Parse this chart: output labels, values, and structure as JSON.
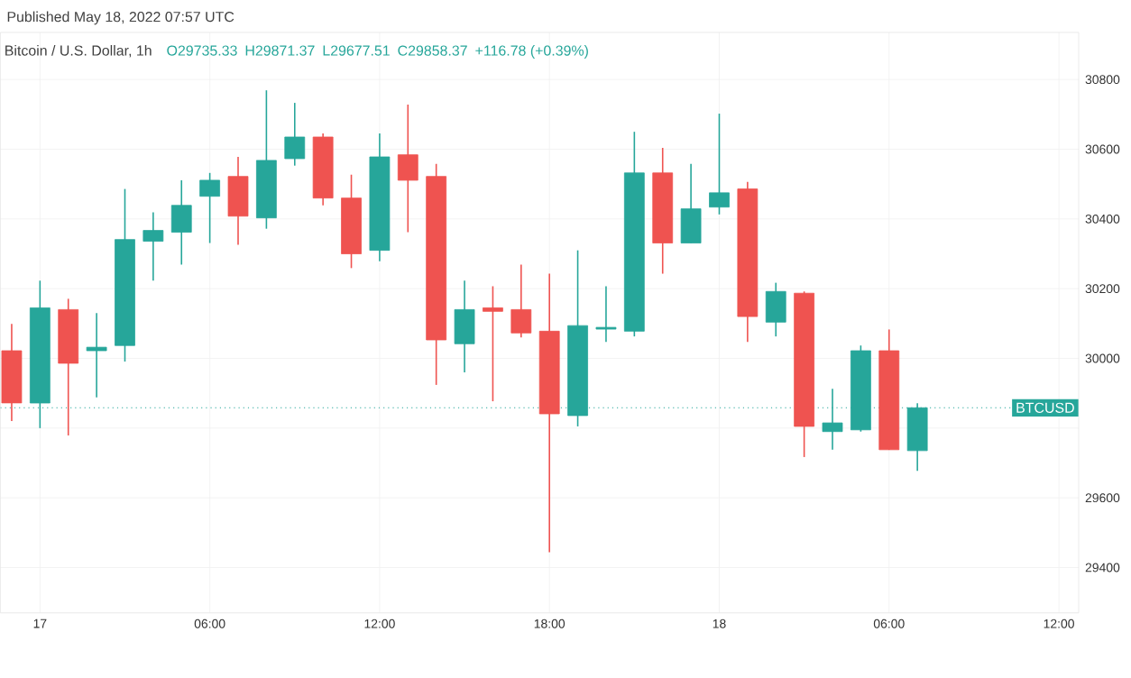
{
  "chart_data": {
    "type": "candlestick",
    "title": "Bitcoin / U.S. Dollar, 1h",
    "subtitle": "Published May 18, 2022 07:57 UTC",
    "annotations": [
      "O29735.33",
      "H29871.37",
      "L29677.51",
      "C29858.37",
      "+116.78 (+0.39%)"
    ],
    "x": [
      "2022-05-16T23:00",
      "2022-05-17T00:00",
      "2022-05-17T01:00",
      "2022-05-17T02:00",
      "2022-05-17T03:00",
      "2022-05-17T04:00",
      "2022-05-17T05:00",
      "2022-05-17T06:00",
      "2022-05-17T07:00",
      "2022-05-17T08:00",
      "2022-05-17T09:00",
      "2022-05-17T10:00",
      "2022-05-17T11:00",
      "2022-05-17T12:00",
      "2022-05-17T13:00",
      "2022-05-17T14:00",
      "2022-05-17T15:00",
      "2022-05-17T16:00",
      "2022-05-17T17:00",
      "2022-05-17T18:00",
      "2022-05-17T19:00",
      "2022-05-17T20:00",
      "2022-05-17T21:00",
      "2022-05-17T22:00",
      "2022-05-17T23:00",
      "2022-05-18T00:00",
      "2022-05-18T01:00",
      "2022-05-18T02:00",
      "2022-05-18T03:00",
      "2022-05-18T04:00",
      "2022-05-18T05:00",
      "2022-05-18T06:00",
      "2022-05-18T07:00"
    ],
    "ohlc": [
      [
        30022,
        30099,
        29820,
        29872
      ],
      [
        29872,
        30223,
        29800,
        30145
      ],
      [
        30140,
        30171,
        29779,
        29986
      ],
      [
        30022,
        30130,
        29888,
        30032
      ],
      [
        30037,
        30486,
        29991,
        30341
      ],
      [
        30336,
        30419,
        30223,
        30367
      ],
      [
        30362,
        30511,
        30269,
        30439
      ],
      [
        30465,
        30532,
        30331,
        30511
      ],
      [
        30522,
        30578,
        30326,
        30408
      ],
      [
        30403,
        30769,
        30372,
        30568
      ],
      [
        30573,
        30733,
        30553,
        30635
      ],
      [
        30635,
        30645,
        30439,
        30460
      ],
      [
        30460,
        30527,
        30259,
        30300
      ],
      [
        30310,
        30645,
        30279,
        30578
      ],
      [
        30584,
        30728,
        30362,
        30511
      ],
      [
        30522,
        30558,
        29924,
        30053
      ],
      [
        30042,
        30223,
        29960,
        30140
      ],
      [
        30145,
        30207,
        29877,
        30135
      ],
      [
        30140,
        30269,
        30060,
        30073
      ],
      [
        30078,
        30243,
        29444,
        29841
      ],
      [
        29836,
        30310,
        29805,
        30094
      ],
      [
        30084,
        30207,
        30047,
        30089
      ],
      [
        30078,
        30650,
        30063,
        30532
      ],
      [
        30532,
        30604,
        30243,
        30331
      ],
      [
        30331,
        30558,
        30331,
        30429
      ],
      [
        30434,
        30702,
        30413,
        30475
      ],
      [
        30486,
        30506,
        30047,
        30120
      ],
      [
        30104,
        30217,
        30063,
        30192
      ],
      [
        30187,
        30192,
        29717,
        29805
      ],
      [
        29790,
        29913,
        29738,
        29815
      ],
      [
        29795,
        30037,
        29790,
        30022
      ],
      [
        30022,
        30083,
        29738,
        29738
      ],
      [
        29735.33,
        29871.37,
        29677.51,
        29858.37
      ]
    ],
    "colors": [
      "#ef5350",
      "#26a69a",
      "#ef5350",
      "#26a69a",
      "#26a69a",
      "#26a69a",
      "#26a69a",
      "#26a69a",
      "#ef5350",
      "#26a69a",
      "#26a69a",
      "#ef5350",
      "#ef5350",
      "#26a69a",
      "#ef5350",
      "#ef5350",
      "#26a69a",
      "#ef5350",
      "#ef5350",
      "#ef5350",
      "#26a69a",
      "#26a69a",
      "#26a69a",
      "#ef5350",
      "#26a69a",
      "#26a69a",
      "#ef5350",
      "#26a69a",
      "#ef5350",
      "#26a69a",
      "#26a69a",
      "#ef5350",
      "#26a69a"
    ],
    "xlim": [
      "2022-05-16T22:36",
      "2022-05-18T12:42"
    ],
    "ylim": [
      29270,
      30935
    ],
    "xticks": [
      {
        "value": "2022-05-17T00:00",
        "label": "17"
      },
      {
        "value": "2022-05-17T06:00",
        "label": "06:00"
      },
      {
        "value": "2022-05-17T12:00",
        "label": "12:00"
      },
      {
        "value": "2022-05-17T18:00",
        "label": "18:00"
      },
      {
        "value": "2022-05-18T00:00",
        "label": "18"
      },
      {
        "value": "2022-05-18T06:00",
        "label": "06:00"
      },
      {
        "value": "2022-05-18T12:00",
        "label": "12:00"
      }
    ],
    "yticks": [
      29400,
      29600,
      {
        "value": 29800,
        "label": null
      },
      30000,
      30200,
      30400,
      30600,
      30800
    ],
    "grid": true,
    "ref_lines": [
      {
        "axis": "y",
        "value": 29858.37,
        "label": "BTCUSD",
        "color": "#26a69a",
        "line_style": "dotted"
      }
    ]
  }
}
